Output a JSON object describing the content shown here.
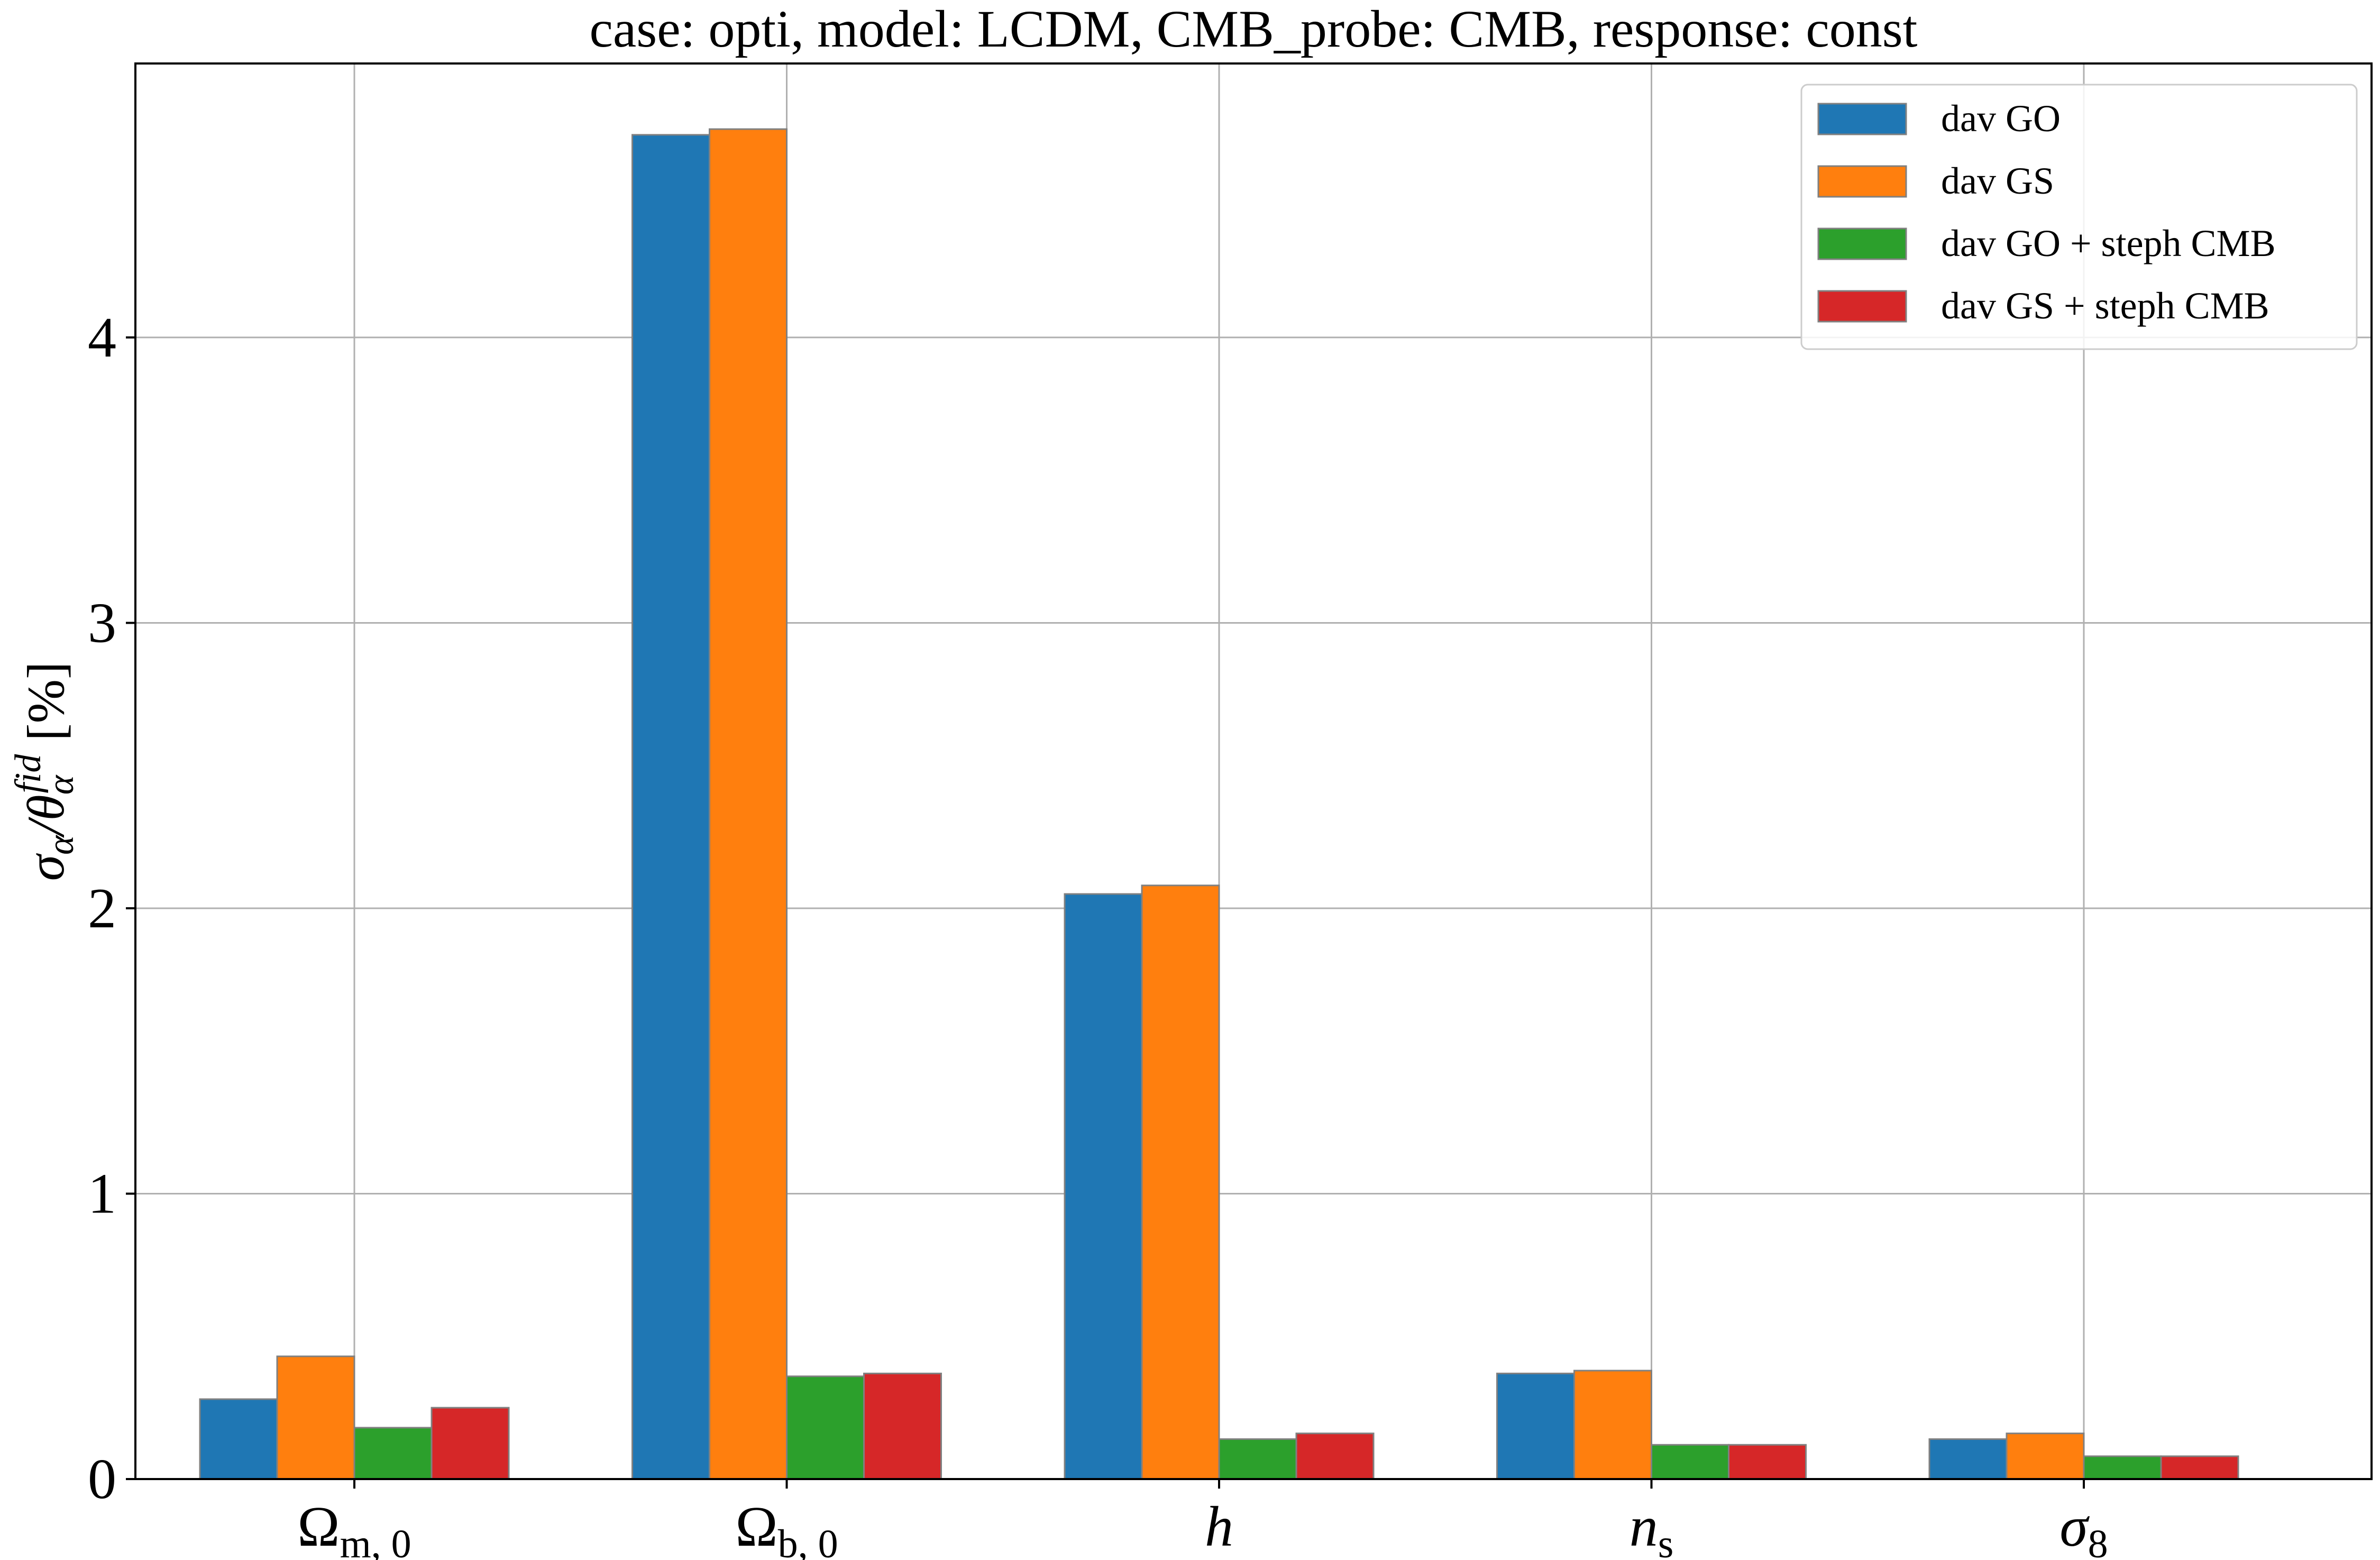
{
  "chart_data": {
    "type": "bar",
    "title": "case: opti, model: LCDM, CMB_probe: CMB, response: const",
    "xlabel": "",
    "ylabel": "σα/θαfid [%]",
    "ylabel_parts": {
      "main": "σ",
      "sub1": "α",
      "slash": "/θ",
      "sub2": "α",
      "sup": "fid",
      "unit": " [%]"
    },
    "ylim": [
      0,
      4.96
    ],
    "yticks": [
      0,
      1,
      2,
      3,
      4
    ],
    "grid": true,
    "legend_placement": "top-right",
    "categories": [
      "Ωm, 0",
      "Ωb, 0",
      "h",
      "ns",
      "σ8"
    ],
    "category_parts": [
      {
        "main": "Ω",
        "sub": "m, 0",
        "italic": false
      },
      {
        "main": "Ω",
        "sub": "b, 0",
        "italic": false
      },
      {
        "main": "h",
        "sub": "",
        "italic": true
      },
      {
        "main": "n",
        "sub": "s",
        "italic": true
      },
      {
        "main": "σ",
        "sub": "8",
        "italic": true
      }
    ],
    "series": [
      {
        "name": "dav GO",
        "color": "#1f77b4",
        "values": [
          0.28,
          4.71,
          2.05,
          0.37,
          0.14
        ]
      },
      {
        "name": "dav GS",
        "color": "#ff7f0e",
        "values": [
          0.43,
          4.73,
          2.08,
          0.38,
          0.16
        ]
      },
      {
        "name": "dav GO + steph CMB",
        "color": "#2ca02c",
        "values": [
          0.18,
          0.36,
          0.14,
          0.12,
          0.08
        ]
      },
      {
        "name": "dav GS + steph CMB",
        "color": "#d62728",
        "values": [
          0.25,
          0.37,
          0.16,
          0.12,
          0.08
        ]
      }
    ],
    "colors": {
      "grid": "#b0b0b0",
      "bar_edge": "#808080",
      "axes": "#000000"
    }
  }
}
